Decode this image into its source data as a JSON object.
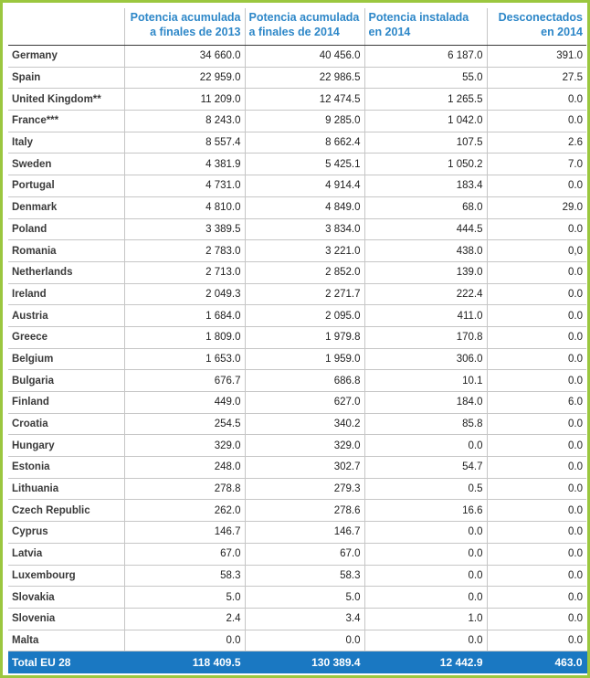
{
  "headers": [
    "",
    "Potencia acumulada\na finales de 2013",
    "Potencia acumulada\na finales de 2014",
    "Potencia instalada\nen 2014",
    "Desconectados\nen 2014"
  ],
  "rows": [
    [
      "Germany",
      "34 660.0",
      "40 456.0",
      "6 187.0",
      "391.0"
    ],
    [
      "Spain",
      "22 959.0",
      "22 986.5",
      "55.0",
      "27.5"
    ],
    [
      "United Kingdom**",
      "11 209.0",
      "12 474.5",
      "1 265.5",
      "0.0"
    ],
    [
      "France***",
      "8 243.0",
      "9 285.0",
      "1 042.0",
      "0.0"
    ],
    [
      "Italy",
      "8 557.4",
      "8 662.4",
      "107.5",
      "2.6"
    ],
    [
      "Sweden",
      "4 381.9",
      "5 425.1",
      "1 050.2",
      "7.0"
    ],
    [
      "Portugal",
      "4 731.0",
      "4 914.4",
      "183.4",
      "0.0"
    ],
    [
      "Denmark",
      "4 810.0",
      "4 849.0",
      "68.0",
      "29.0"
    ],
    [
      "Poland",
      "3 389.5",
      "3 834.0",
      "444.5",
      "0.0"
    ],
    [
      "Romania",
      "2 783.0",
      "3 221.0",
      "438.0",
      "0,0"
    ],
    [
      "Netherlands",
      "2 713.0",
      "2 852.0",
      "139.0",
      "0.0"
    ],
    [
      "Ireland",
      "2 049.3",
      "2 271.7",
      "222.4",
      "0.0"
    ],
    [
      "Austria",
      "1 684.0",
      "2 095.0",
      "411.0",
      "0.0"
    ],
    [
      "Greece",
      "1 809.0",
      "1 979.8",
      "170.8",
      "0.0"
    ],
    [
      "Belgium",
      "1 653.0",
      "1 959.0",
      "306.0",
      "0.0"
    ],
    [
      "Bulgaria",
      "676.7",
      "686.8",
      "10.1",
      "0.0"
    ],
    [
      "Finland",
      "449.0",
      "627.0",
      "184.0",
      "6.0"
    ],
    [
      "Croatia",
      "254.5",
      "340.2",
      "85.8",
      "0.0"
    ],
    [
      "Hungary",
      "329.0",
      "329.0",
      "0.0",
      "0.0"
    ],
    [
      "Estonia",
      "248.0",
      "302.7",
      "54.7",
      "0.0"
    ],
    [
      "Lithuania",
      "278.8",
      "279.3",
      "0.5",
      "0.0"
    ],
    [
      "Czech Republic",
      "262.0",
      "278.6",
      "16.6",
      "0.0"
    ],
    [
      "Cyprus",
      "146.7",
      "146.7",
      "0.0",
      "0.0"
    ],
    [
      "Latvia",
      "67.0",
      "67.0",
      "0.0",
      "0.0"
    ],
    [
      "Luxembourg",
      "58.3",
      "58.3",
      "0.0",
      "0.0"
    ],
    [
      "Slovakia",
      "5.0",
      "5.0",
      "0.0",
      "0.0"
    ],
    [
      "Slovenia",
      "2.4",
      "3.4",
      "1.0",
      "0.0"
    ],
    [
      "Malta",
      "0.0",
      "0.0",
      "0.0",
      "0.0"
    ]
  ],
  "total": [
    "Total EU 28",
    "118 409.5",
    "130 389.4",
    "12 442.9",
    "463.0"
  ]
}
